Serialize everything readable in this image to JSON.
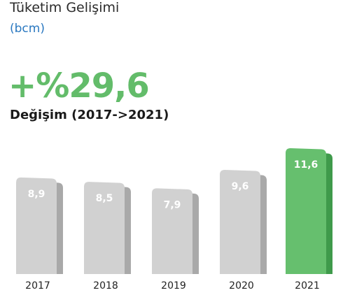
{
  "header": {
    "title": "Tüketim Gelişimi",
    "unit": "(bcm)"
  },
  "highlight": {
    "change_value": "+%29,6",
    "change_label": "Değişim (2017->2021)"
  },
  "colors": {
    "bar_default": "#d1d1d1",
    "bar_default_shadow": "#a9a9a9",
    "bar_highlight": "#66bf6e",
    "bar_highlight_shadow": "#3f9a4b",
    "accent_blue": "#2a78c0",
    "accent_green": "#63bc6a"
  },
  "chart_data": {
    "type": "bar",
    "categories": [
      "2017",
      "2018",
      "2019",
      "2020",
      "2021"
    ],
    "values": [
      8.9,
      8.5,
      7.9,
      9.6,
      11.6
    ],
    "value_labels": [
      "8,9",
      "8,5",
      "7,9",
      "9,6",
      "11,6"
    ],
    "highlight_index": 4,
    "title": "Tüketim Gelişimi",
    "ylabel": "(bcm)",
    "xlabel": "",
    "grid": false,
    "legend": "none"
  }
}
